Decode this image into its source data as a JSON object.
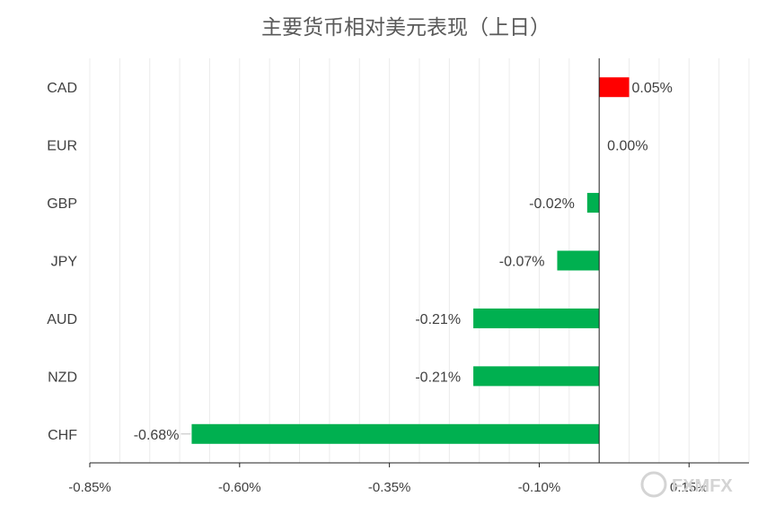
{
  "chart_data": {
    "type": "bar",
    "orientation": "horizontal",
    "title": "主要货币相对美元表现（上日）",
    "xlabel": "",
    "ylabel": "",
    "categories": [
      "CAD",
      "EUR",
      "GBP",
      "JPY",
      "AUD",
      "NZD",
      "CHF"
    ],
    "values": [
      0.05,
      0.0,
      -0.02,
      -0.07,
      -0.21,
      -0.21,
      -0.68
    ],
    "data_labels": [
      "0.05%",
      "0.00%",
      "-0.02%",
      "-0.07%",
      "-0.21%",
      "-0.21%",
      "-0.68%"
    ],
    "xlim": [
      -0.85,
      0.25
    ],
    "x_ticks": [
      -0.85,
      -0.6,
      -0.35,
      -0.1,
      0.15
    ],
    "x_tick_labels": [
      "-0.85%",
      "-0.60%",
      "-0.35%",
      "-0.10%",
      "0.15%"
    ],
    "grid": true,
    "legend": "none",
    "colors": {
      "positive": "#ff0000",
      "negative": "#00b050"
    }
  },
  "watermark": "FXMFX"
}
